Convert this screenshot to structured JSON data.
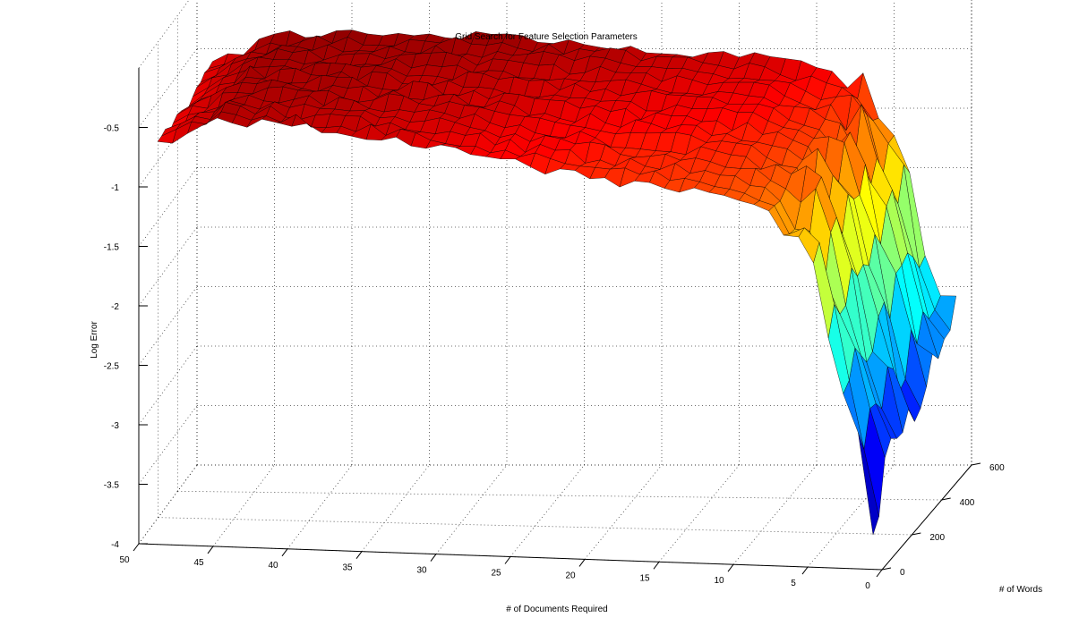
{
  "chart_data": {
    "type": "surface",
    "title": "Grid Search for Feature Selection Parameters",
    "xlabel": "# of Documents Required",
    "ylabel": "# of Words",
    "zlabel": "Log Error",
    "xlim": [
      0,
      50
    ],
    "ylim": [
      0,
      600
    ],
    "zlim": [
      -4,
      0
    ],
    "x_ticks": [
      "0",
      "5",
      "10",
      "15",
      "20",
      "25",
      "30",
      "35",
      "40",
      "45",
      "50"
    ],
    "y_ticks": [
      "0",
      "200",
      "400",
      "600"
    ],
    "z_ticks": [
      "-4",
      "-3.5",
      "-3",
      "-2.5",
      "-2",
      "-1.5",
      "-1",
      "-0.5"
    ],
    "grid": true,
    "colormap": "jet",
    "edge_color": "#000000",
    "surface_profile": {
      "x": [
        1,
        2,
        3,
        4,
        5,
        6,
        8,
        10,
        12,
        15,
        20,
        25,
        30,
        35,
        40,
        45,
        49
      ],
      "z_at_max_words": [
        -2.55,
        -2.45,
        -2.05,
        -1.6,
        -1.2,
        -0.92,
        -0.78,
        -0.68,
        -0.6,
        -0.55,
        -0.5,
        -0.45,
        -0.4,
        -0.38,
        -0.38,
        -0.4,
        -0.65
      ],
      "z_at_min_words": [
        -3.55,
        -3.1,
        -2.5,
        -2.0,
        -1.6,
        -1.3,
        -1.1,
        -1.0,
        -0.95,
        -0.9,
        -0.85,
        -0.75,
        -0.65,
        -0.55,
        -0.5,
        -0.45,
        -0.7
      ]
    }
  }
}
